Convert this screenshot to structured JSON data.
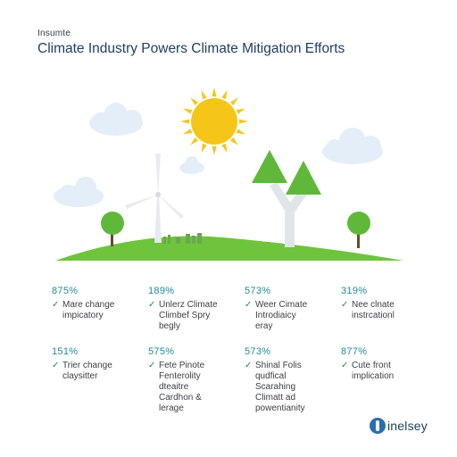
{
  "header": {
    "eyebrow": "Insumte",
    "title": "Climate Industry Powers Climate Mitigation Efforts"
  },
  "stats": [
    {
      "value": "875%",
      "text": "Mare change\nimpicatory"
    },
    {
      "value": "189%",
      "text": "Unlerz Climate\nClimbef Spry\nbegly"
    },
    {
      "value": "573%",
      "text": "Weer Cimate\nIntrodiaicy\neray"
    },
    {
      "value": "319%",
      "text": "Nee clnate\ninstrcationl"
    },
    {
      "value": "151%",
      "text": "Trier change\nclaysitter"
    },
    {
      "value": "575%",
      "text": "Fete Pinote\nFenterolity\ndteaitre\nCardhon &\nlerage"
    },
    {
      "value": "573%",
      "text": "Shinal Folis\nqudfical\nScarahing\nClimatt ad\npowentianity"
    },
    {
      "value": "877%",
      "text": "Cute front\nimplication"
    }
  ],
  "brand": {
    "name": "inelsey"
  },
  "colors": {
    "title": "#1f3f63",
    "stat_value": "#1e8a9c",
    "check": "#2a8a4a",
    "grass": "#6ec43c",
    "sun": "#f5c518",
    "cloud": "#e3eef8"
  },
  "icons": [
    "sun-icon",
    "cloud-icon",
    "wind-turbine-icon",
    "tree-icon",
    "check-icon",
    "brand-logo-icon"
  ]
}
